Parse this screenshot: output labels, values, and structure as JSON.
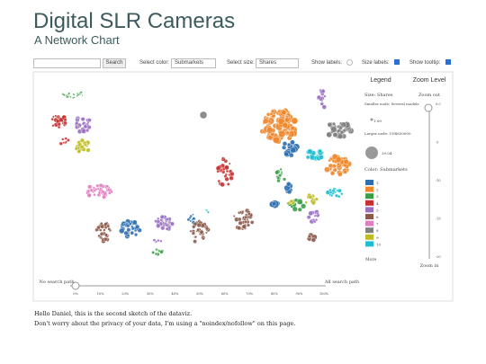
{
  "header": {
    "title": "Digital SLR Cameras",
    "subtitle": "A Network Chart"
  },
  "controls": {
    "search_button": "Search",
    "color_label": "Select color:",
    "color_value": "Submarkets",
    "size_label": "Select size:",
    "size_value": "Shares",
    "show_labels": "Show labels:",
    "size_labels": "Size labels:",
    "show_tooltip": "Show tooltip:"
  },
  "legend": {
    "title": "Legend",
    "size_title": "Size: Shares",
    "smaller": "Smaller node: Several models",
    "smaller_value": "1.00",
    "larger": "Larger node: US$830000",
    "larger_value": "39.04",
    "color_title": "Color: Submarkets",
    "items": [
      {
        "label": "1",
        "color": "#2e6fb0"
      },
      {
        "label": "2",
        "color": "#f0862a"
      },
      {
        "label": "3",
        "color": "#3a9e45"
      },
      {
        "label": "4",
        "color": "#c6302f"
      },
      {
        "label": "5",
        "color": "#9a6fc2"
      },
      {
        "label": "6",
        "color": "#8c5a4b"
      },
      {
        "label": "7",
        "color": "#df7ec0"
      },
      {
        "label": "8",
        "color": "#808080"
      },
      {
        "label": "9",
        "color": "#bcbd22"
      },
      {
        "label": "10",
        "color": "#1fbdcf"
      }
    ],
    "more": "More"
  },
  "zoom": {
    "title": "Zoom Level",
    "out": "Zoom out",
    "in": "Zoom in",
    "ticks": [
      "0.0",
      "-5",
      "-10",
      "-15",
      "-20"
    ]
  },
  "path_slider": {
    "left": "No search path",
    "right": "All search path",
    "ticks": [
      "0%",
      "10%",
      "20%",
      "30%",
      "40%",
      "50%",
      "60%",
      "70%",
      "80%",
      "90%",
      "100%"
    ]
  },
  "footer": {
    "line1": "Hello Daniel, this is the second sketch of the dataviz.",
    "line2": "Don't worry about the privacy of your data, I'm using a \"noindex/nofollow\" on this page."
  }
}
